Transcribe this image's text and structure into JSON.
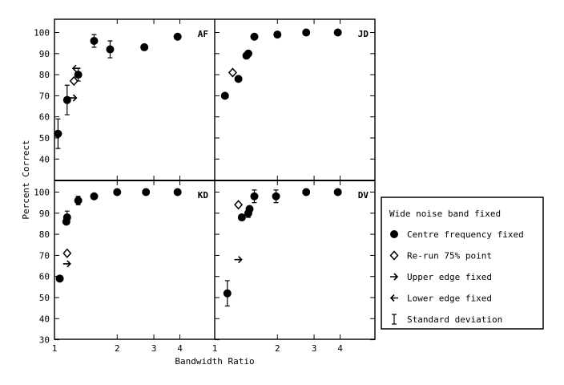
{
  "chart_data": {
    "type": "scatter",
    "xlabel": "Bandwidth Ratio",
    "ylabel": "Percent Correct",
    "x_scale": "log",
    "xlim": [
      1,
      6
    ],
    "ylim": [
      30,
      104
    ],
    "x_ticks": [
      {
        "value": 1,
        "label": "1"
      },
      {
        "value": 2,
        "label": "2"
      },
      {
        "value": 3,
        "label": "3"
      },
      {
        "value": 4,
        "label": "4"
      }
    ],
    "y_ticks_top": [
      40,
      50,
      60,
      70,
      80,
      90,
      100
    ],
    "y_ticks_bottom": [
      30,
      40,
      50,
      60,
      70,
      80,
      90,
      100
    ],
    "legend": {
      "title": "Wide noise band fixed",
      "placement": "right",
      "entries": [
        {
          "marker": "filled-circle",
          "label": "Centre frequency fixed"
        },
        {
          "marker": "open-diamond",
          "label": "Re-run 75% point"
        },
        {
          "marker": "right-arrow",
          "label": "Upper edge fixed"
        },
        {
          "marker": "left-arrow",
          "label": "Lower edge fixed"
        },
        {
          "marker": "error-bar",
          "label": "Standard deviation"
        }
      ]
    },
    "panels": [
      {
        "label": "AF",
        "centre": [
          [
            1.04,
            52,
            7
          ],
          [
            1.15,
            68,
            7
          ],
          [
            1.3,
            80,
            3
          ],
          [
            1.55,
            96,
            3
          ],
          [
            1.85,
            92,
            4
          ],
          [
            2.7,
            93,
            1
          ],
          [
            3.9,
            98,
            1
          ]
        ],
        "rerun": [
          [
            1.24,
            77
          ]
        ],
        "upper": [
          [
            1.23,
            69
          ]
        ],
        "lower": [
          [
            1.27,
            83
          ]
        ]
      },
      {
        "label": "JD",
        "centre": [
          [
            1.12,
            70,
            0
          ],
          [
            1.3,
            78,
            0
          ],
          [
            1.42,
            89,
            0
          ],
          [
            1.45,
            90,
            0
          ],
          [
            1.55,
            98,
            0
          ],
          [
            2.0,
            99,
            1
          ],
          [
            2.75,
            100,
            0
          ],
          [
            3.9,
            100,
            0
          ]
        ],
        "rerun": [
          [
            1.22,
            81
          ]
        ],
        "upper": [],
        "lower": []
      },
      {
        "label": "KD",
        "centre": [
          [
            1.06,
            59,
            0
          ],
          [
            1.15,
            88,
            3
          ],
          [
            1.14,
            86,
            0
          ],
          [
            1.3,
            96,
            2
          ],
          [
            1.55,
            98,
            1
          ],
          [
            2.0,
            100,
            1
          ],
          [
            2.75,
            100,
            1
          ],
          [
            3.9,
            100,
            0
          ]
        ],
        "rerun": [
          [
            1.15,
            71
          ]
        ],
        "upper": [
          [
            1.15,
            66
          ]
        ],
        "lower": []
      },
      {
        "label": "DV",
        "centre": [
          [
            1.15,
            52,
            6
          ],
          [
            1.35,
            88,
            0
          ],
          [
            1.45,
            90,
            2
          ],
          [
            1.47,
            92,
            0
          ],
          [
            1.55,
            98,
            3
          ],
          [
            1.97,
            98,
            3
          ],
          [
            2.75,
            100,
            0
          ],
          [
            3.9,
            100,
            0
          ]
        ],
        "rerun": [
          [
            1.3,
            94
          ]
        ],
        "upper": [
          [
            1.3,
            68
          ]
        ],
        "lower": []
      }
    ]
  }
}
